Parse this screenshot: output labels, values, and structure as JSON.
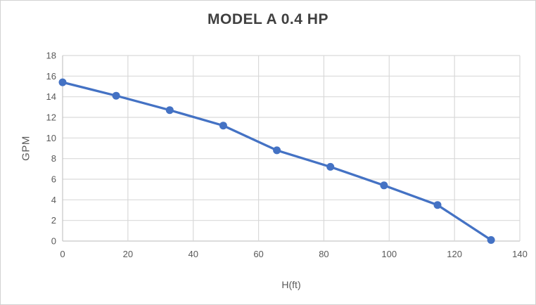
{
  "chart_data": {
    "type": "line",
    "title": "MODEL A 0.4 HP",
    "xlabel": "H(ft)",
    "ylabel": "GPM",
    "xlim": [
      0,
      140
    ],
    "ylim": [
      0,
      18
    ],
    "x_ticks": [
      0,
      20,
      40,
      60,
      80,
      100,
      120,
      140
    ],
    "y_ticks": [
      0,
      2,
      4,
      6,
      8,
      10,
      12,
      14,
      16,
      18
    ],
    "grid": true,
    "legend": false,
    "series": [
      {
        "name": "MODEL A 0.4 HP",
        "x": [
          0,
          16.4,
          32.8,
          49.2,
          65.6,
          82,
          98.4,
          114.8,
          131.2
        ],
        "y": [
          15.4,
          14.1,
          12.7,
          11.2,
          8.8,
          7.2,
          5.4,
          3.5,
          0.1
        ],
        "color": "#4472C4",
        "marker": "circle",
        "marker_radius": 5.5,
        "line_width": 3.3
      }
    ],
    "colors": {
      "gridline": "#d9d9d9",
      "axis_line": "#c6c6c6",
      "tick_label": "#595959",
      "axis_title": "#595959",
      "title": "#404040",
      "background": "#ffffff"
    }
  }
}
